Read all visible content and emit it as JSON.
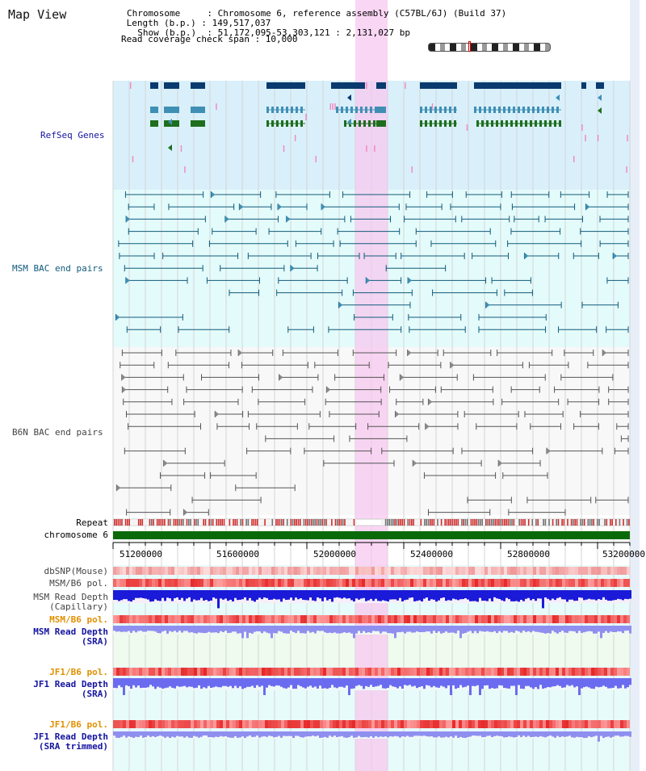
{
  "header": {
    "title": "Map View",
    "info_lines": [
      "Chromosome     : Chromosome 6, reference assembly (C57BL/6J) (Build 37)",
      " Length (b.p.) : 149,517,037",
      "  Show (b.p.)  : 51,172,095-53,303,121 : 2,131,027 bp",
      "Read coverage check span : 10,000"
    ]
  },
  "tracks": {
    "refseq": "RefSeq Genes",
    "msm_bac": "MSM BAC end pairs",
    "b6n_bac": "B6N BAC end pairs",
    "repeat": "Repeat",
    "chromosome": "chromosome 6",
    "dbsnp": "dbSNP(Mouse)",
    "msm_b6_pol_1": "MSM/B6 pol.",
    "msm_depth_cap_1": "MSM Read Depth",
    "msm_depth_cap_2": "(Capillary)",
    "msm_b6_pol_2": "MSM/B6 pol.",
    "msm_depth_sra_1": "MSM Read Depth",
    "msm_depth_sra_2": "(SRA)",
    "jf1_b6_pol_1": "JF1/B6 pol.",
    "jf1_depth_sra_1": "JF1 Read Depth",
    "jf1_depth_sra_2": "(SRA)",
    "jf1_b6_pol_2": "JF1/B6 pol.",
    "jf1_depth_trim_1": "JF1 Read Depth",
    "jf1_depth_trim_2": "(SRA trimmed)"
  },
  "axis": {
    "ticks": [
      "51200000",
      "51600000",
      "52000000",
      "52400000",
      "52800000",
      "53200000"
    ]
  },
  "colors": {
    "refseq_bg": "#d9f0fb",
    "bac_bg": "#e4fbfb",
    "highlight": "#f7c8ef",
    "gene_dark": "#0a3a6e",
    "gene_light": "#3f8fb5",
    "gene_green": "#1e6e1e",
    "chromosome": "#0a6a0a",
    "label_blue": "#1414a0",
    "label_orange": "#e09000",
    "label_teal": "#105a7a",
    "label_gray": "#444444"
  }
}
